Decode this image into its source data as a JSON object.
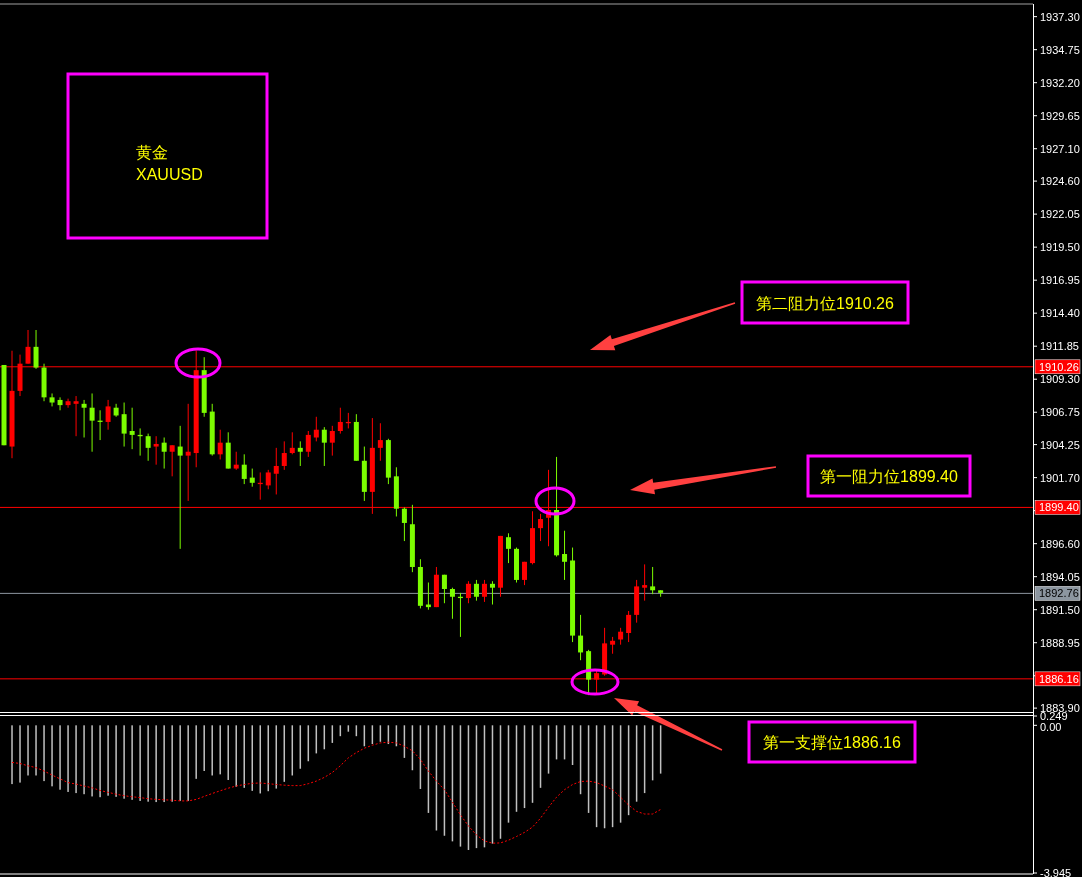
{
  "chart_data": [
    {
      "type": "candlestick",
      "title": "黄金",
      "subtitle": "XAUUSD",
      "categories": [
        null,
        null,
        null,
        null,
        null,
        null,
        null,
        null,
        null,
        null,
        null,
        null,
        null,
        null,
        null,
        null,
        null,
        null,
        null,
        null,
        null,
        null,
        null,
        null,
        null,
        null,
        null,
        null,
        null,
        null,
        null,
        null,
        null,
        null,
        null,
        null,
        null,
        null,
        null,
        null,
        null,
        null,
        null,
        null,
        null,
        null,
        null,
        null,
        null,
        null,
        null,
        null,
        null,
        null,
        null,
        null,
        null,
        null,
        null,
        null,
        null,
        null,
        null,
        null,
        null,
        null,
        null,
        null,
        null,
        null,
        null,
        null,
        null,
        null,
        null,
        null,
        null,
        null,
        null,
        null,
        null,
        null,
        null,
        null,
        null,
        null,
        null,
        null,
        null,
        null,
        null,
        null,
        null,
        null,
        null,
        null,
        null,
        null,
        null,
        null,
        null,
        null,
        null,
        null,
        null,
        null,
        null,
        null,
        null,
        null,
        null,
        null,
        null,
        null,
        null,
        null,
        null,
        null,
        null,
        null,
        null,
        null,
        null,
        null,
        null,
        null,
        null,
        null,
        null
      ],
      "ohlc": [
        [
          1910.4,
          1910.4,
          1904.2,
          1904.2
        ],
        [
          1904.1,
          1911.5,
          1903.2,
          1908.4
        ],
        [
          1908.4,
          1911.2,
          1908.0,
          1910.5
        ],
        [
          1910.5,
          1913.1,
          1910.5,
          1911.8
        ],
        [
          1911.8,
          1913.1,
          1910.1,
          1910.2
        ],
        [
          1910.2,
          1910.5,
          1907.6,
          1907.9
        ],
        [
          1907.9,
          1908.2,
          1907.2,
          1907.5
        ],
        [
          1907.7,
          1907.9,
          1906.9,
          1907.3
        ],
        [
          1907.3,
          1907.8,
          1907.1,
          1907.6
        ],
        [
          1907.4,
          1908.0,
          1904.9,
          1907.6
        ],
        [
          1907.4,
          1907.7,
          1904.8,
          1907.1
        ],
        [
          1907.1,
          1908.2,
          1903.7,
          1906.1
        ],
        [
          1906.1,
          1906.9,
          1904.6,
          1906.0
        ],
        [
          1906.0,
          1907.7,
          1905.4,
          1907.2
        ],
        [
          1907.1,
          1907.4,
          1906.4,
          1906.5
        ],
        [
          1906.6,
          1907.5,
          1904.1,
          1905.1
        ],
        [
          1905.3,
          1907.1,
          1903.9,
          1905.0
        ],
        [
          1905.0,
          1905.5,
          1903.4,
          1904.9
        ],
        [
          1904.9,
          1905.1,
          1903.0,
          1904.0
        ],
        [
          1904.1,
          1904.9,
          1902.7,
          1904.3
        ],
        [
          1904.4,
          1904.8,
          1902.4,
          1903.7
        ],
        [
          1903.7,
          1904.2,
          1901.8,
          1904.2
        ],
        [
          1904.1,
          1905.7,
          1896.2,
          1903.4
        ],
        [
          1903.4,
          1907.4,
          1899.9,
          1903.7
        ],
        [
          1903.6,
          1911.5,
          1902.5,
          1910.0
        ],
        [
          1910.0,
          1911.0,
          1906.4,
          1906.7
        ],
        [
          1906.8,
          1907.4,
          1903.4,
          1903.5
        ],
        [
          1903.5,
          1905.4,
          1903.1,
          1904.4
        ],
        [
          1904.4,
          1905.2,
          1902.4,
          1902.4
        ],
        [
          1902.4,
          1903.7,
          1902.3,
          1902.7
        ],
        [
          1902.7,
          1903.5,
          1901.2,
          1901.6
        ],
        [
          1901.7,
          1902.4,
          1901.0,
          1901.3
        ],
        [
          1901.2,
          1902.1,
          1900.0,
          1901.3
        ],
        [
          1901.1,
          1902.3,
          1900.8,
          1902.1
        ],
        [
          1902.0,
          1904.0,
          1900.4,
          1902.6
        ],
        [
          1902.6,
          1904.5,
          1902.3,
          1903.6
        ],
        [
          1903.6,
          1905.2,
          1903.5,
          1904.0
        ],
        [
          1904.0,
          1904.5,
          1902.6,
          1903.7
        ],
        [
          1903.7,
          1905.3,
          1903.3,
          1905.0
        ],
        [
          1904.8,
          1906.4,
          1904.5,
          1905.4
        ],
        [
          1905.4,
          1905.6,
          1902.6,
          1904.4
        ],
        [
          1904.4,
          1905.7,
          1903.4,
          1905.3
        ],
        [
          1905.3,
          1907.1,
          1905.1,
          1906.0
        ],
        [
          1905.9,
          1906.7,
          1905.5,
          1906.0
        ],
        [
          1906.0,
          1906.6,
          1903.0,
          1903.0
        ],
        [
          1903.0,
          1904.1,
          1899.9,
          1900.6
        ],
        [
          1900.6,
          1906.3,
          1898.9,
          1904.0
        ],
        [
          1904.0,
          1905.9,
          1903.0,
          1904.6
        ],
        [
          1904.6,
          1904.7,
          1901.2,
          1901.7
        ],
        [
          1901.8,
          1902.5,
          1898.7,
          1899.3
        ],
        [
          1899.3,
          1899.4,
          1896.8,
          1898.2
        ],
        [
          1898.1,
          1899.6,
          1894.4,
          1894.8
        ],
        [
          1894.8,
          1895.4,
          1891.6,
          1891.8
        ],
        [
          1891.9,
          1893.6,
          1891.5,
          1891.7
        ],
        [
          1891.7,
          1894.8,
          1891.7,
          1894.2
        ],
        [
          1894.2,
          1894.2,
          1892.0,
          1893.1
        ],
        [
          1893.1,
          1893.2,
          1890.8,
          1892.5
        ],
        [
          1892.5,
          1892.8,
          1889.4,
          1892.4
        ],
        [
          1892.4,
          1893.7,
          1892.0,
          1893.5
        ],
        [
          1893.5,
          1893.8,
          1892.2,
          1892.5
        ],
        [
          1892.5,
          1893.8,
          1892.1,
          1893.5
        ],
        [
          1893.5,
          1893.7,
          1891.9,
          1893.2
        ],
        [
          1893.2,
          1897.2,
          1892.5,
          1897.2
        ],
        [
          1897.1,
          1897.4,
          1895.1,
          1896.2
        ],
        [
          1896.2,
          1896.3,
          1893.6,
          1893.8
        ],
        [
          1893.8,
          1895.2,
          1893.4,
          1895.2
        ],
        [
          1895.1,
          1899.1,
          1895.0,
          1897.8
        ],
        [
          1897.8,
          1898.9,
          1896.8,
          1898.5
        ],
        [
          1898.6,
          1902.3,
          1896.4,
          1899.2
        ],
        [
          1899.2,
          1903.3,
          1895.6,
          1895.7
        ],
        [
          1895.8,
          1897.6,
          1893.8,
          1895.2
        ],
        [
          1895.3,
          1896.3,
          1889.0,
          1889.5
        ],
        [
          1889.5,
          1891.1,
          1887.6,
          1888.2
        ],
        [
          1888.3,
          1888.4,
          1884.9,
          1886.1
        ],
        [
          1886.1,
          1886.8,
          1885.0,
          1886.6
        ],
        [
          1886.5,
          1890.1,
          1886.4,
          1888.9
        ],
        [
          1888.8,
          1889.4,
          1888.1,
          1889.1
        ],
        [
          1889.2,
          1890.1,
          1888.8,
          1889.8
        ],
        [
          1889.7,
          1891.4,
          1889.0,
          1891.1
        ],
        [
          1891.1,
          1893.8,
          1890.5,
          1893.3
        ],
        [
          1893.2,
          1895.0,
          1892.2,
          1893.4
        ],
        [
          1893.3,
          1894.8,
          1892.7,
          1893.0
        ],
        [
          1893.0,
          1893.0,
          1892.5,
          1892.8
        ],
        null,
        null,
        null,
        null,
        null,
        null,
        null,
        null,
        null,
        null,
        null,
        null,
        null,
        null,
        null,
        null,
        null,
        null,
        null,
        null,
        null,
        null,
        null,
        null,
        null,
        null,
        null,
        null,
        null,
        null,
        null,
        null,
        null,
        null,
        null,
        null,
        null,
        null,
        null,
        null,
        null,
        null,
        null,
        null,
        null,
        null
      ],
      "ylim": [
        1883.6,
        1938.2
      ],
      "yticks": [
        {
          "value": 1937.3,
          "label": "1937.30"
        },
        {
          "value": 1934.75,
          "label": "1934.75"
        },
        {
          "value": 1932.2,
          "label": "1932.20"
        },
        {
          "value": 1929.65,
          "label": "1929.65"
        },
        {
          "value": 1927.1,
          "label": "1927.10"
        },
        {
          "value": 1924.6,
          "label": "1924.60"
        },
        {
          "value": 1922.05,
          "label": "1922.05"
        },
        {
          "value": 1919.5,
          "label": "1919.50"
        },
        {
          "value": 1916.95,
          "label": "1916.95"
        },
        {
          "value": 1914.4,
          "label": "1914.40"
        },
        {
          "value": 1911.85,
          "label": "1911.85"
        },
        {
          "value": 1909.3,
          "label": "1909.30"
        },
        {
          "value": 1906.75,
          "label": "1906.75"
        },
        {
          "value": 1904.25,
          "label": "1904.25"
        },
        {
          "value": 1901.7,
          "label": "1901.70"
        },
        {
          "value": 1899.15,
          "label": null
        },
        {
          "value": 1896.6,
          "label": "1896.60"
        },
        {
          "value": 1894.05,
          "label": "1894.05"
        },
        {
          "value": 1891.5,
          "label": "1891.50"
        },
        {
          "value": 1888.95,
          "label": "1888.95"
        },
        {
          "value": 1886.4,
          "label": null
        },
        {
          "value": 1883.9,
          "label": "1883.90"
        }
      ],
      "ref_lines": [
        {
          "axis": "y",
          "value": 1910.26,
          "label": "1910.26",
          "color": "#ff0000"
        },
        {
          "axis": "y",
          "value": 1899.4,
          "label": "1899.40",
          "color": "#ff0000"
        },
        {
          "axis": "y",
          "value": 1892.76,
          "label": "1892.76",
          "color": "#8c96a0"
        },
        {
          "axis": "y",
          "value": 1886.16,
          "label": "1886.16",
          "color": "#ff0000"
        }
      ],
      "annotations": [
        "第二阻力位1910.26",
        "第一阻力位1899.40",
        "第一支撑位1886.16"
      ]
    },
    {
      "type": "bar",
      "categories": [
        null,
        null,
        null,
        null,
        null,
        null,
        null,
        null,
        null,
        null,
        null,
        null,
        null,
        null,
        null,
        null,
        null,
        null,
        null,
        null,
        null,
        null,
        null,
        null,
        null,
        null,
        null,
        null,
        null,
        null,
        null,
        null,
        null,
        null,
        null,
        null,
        null,
        null,
        null,
        null,
        null,
        null,
        null,
        null,
        null,
        null,
        null,
        null,
        null,
        null,
        null,
        null,
        null,
        null,
        null,
        null,
        null,
        null,
        null,
        null,
        null,
        null,
        null,
        null,
        null,
        null,
        null,
        null,
        null,
        null,
        null,
        null,
        null,
        null,
        null,
        null,
        null,
        null,
        null,
        null,
        null,
        null,
        null,
        null,
        null,
        null,
        null,
        null,
        null,
        null,
        null,
        null,
        null,
        null,
        null,
        null,
        null,
        null,
        null,
        null,
        null,
        null,
        null,
        null,
        null,
        null,
        null,
        null,
        null,
        null,
        null,
        null,
        null,
        null,
        null,
        null,
        null,
        null,
        null,
        null,
        null,
        null,
        null,
        null,
        null,
        null,
        null,
        null,
        null
      ],
      "ylim": [
        -3.945,
        0.249
      ],
      "yticks": [
        {
          "value": 0.249,
          "label": "0.249"
        },
        {
          "value": 0,
          "label": "0.00"
        },
        {
          "value": -3.945,
          "label": "-3.945"
        }
      ],
      "series": [
        {
          "type": "bar",
          "color": "#c0c0c0",
          "values": [
            null,
            -1.57,
            -1.53,
            -1.34,
            -1.34,
            -1.49,
            -1.63,
            -1.72,
            -1.78,
            -1.81,
            -1.84,
            -1.9,
            -1.92,
            -1.88,
            -1.91,
            -1.96,
            -1.99,
            -2.02,
            -2.04,
            -2.05,
            -2.05,
            -2.04,
            -2.02,
            -2.02,
            -1.43,
            -1.22,
            -1.34,
            -1.31,
            -1.46,
            -1.64,
            -1.67,
            -1.75,
            -1.82,
            -1.76,
            -1.69,
            -1.51,
            -1.34,
            -1.16,
            -0.96,
            -0.75,
            -0.64,
            -0.47,
            -0.29,
            -0.17,
            -0.29,
            -0.56,
            -0.5,
            -0.44,
            -0.5,
            -0.56,
            -0.87,
            -1.2,
            -1.7,
            -2.34,
            -2.81,
            -2.95,
            -3.1,
            -3.24,
            -3.33,
            -3.28,
            -3.26,
            -3.16,
            -3.03,
            -2.6,
            -2.31,
            -2.21,
            -2.07,
            -1.67,
            -1.29,
            -0.91,
            -0.91,
            -1.06,
            -1.84,
            -2.34,
            -2.72,
            -2.75,
            -2.72,
            -2.6,
            -2.4,
            -2.04,
            -1.81,
            -1.47,
            -1.29,
            null,
            null,
            null,
            null,
            null,
            null,
            null,
            null,
            null,
            null,
            null,
            null,
            null,
            null,
            null,
            null,
            null,
            null,
            null,
            null,
            null,
            null,
            null,
            null,
            null,
            null,
            null,
            null,
            null,
            null,
            null,
            null,
            null,
            null,
            null,
            null,
            null,
            null,
            null,
            null,
            null,
            null,
            null,
            null,
            null,
            null
          ]
        },
        {
          "type": "line",
          "color": "#ff0000",
          "line_style": "dotted",
          "values": [
            null,
            -0.99,
            -1.02,
            -1.08,
            -1.13,
            -1.22,
            -1.33,
            -1.43,
            -1.53,
            -1.57,
            -1.62,
            -1.67,
            -1.74,
            -1.79,
            -1.84,
            -1.88,
            -1.91,
            -1.93,
            -1.96,
            -1.98,
            -1.99,
            -2.0,
            -2.02,
            -2.02,
            -1.98,
            -1.9,
            -1.82,
            -1.75,
            -1.68,
            -1.62,
            -1.58,
            -1.55,
            -1.54,
            -1.56,
            -1.58,
            -1.6,
            -1.61,
            -1.61,
            -1.56,
            -1.49,
            -1.39,
            -1.26,
            -1.08,
            -0.87,
            -0.73,
            -0.61,
            -0.53,
            -0.47,
            -0.45,
            -0.47,
            -0.56,
            -0.68,
            -0.91,
            -1.22,
            -1.49,
            -1.72,
            -2.05,
            -2.39,
            -2.69,
            -2.93,
            -3.09,
            -3.15,
            -3.14,
            -3.07,
            -2.97,
            -2.86,
            -2.72,
            -2.48,
            -2.19,
            -1.92,
            -1.72,
            -1.58,
            -1.5,
            -1.49,
            -1.53,
            -1.62,
            -1.72,
            -1.92,
            -2.13,
            -2.3,
            -2.37,
            -2.37,
            -2.25,
            null,
            null,
            null,
            null,
            null,
            null,
            null,
            null,
            null,
            null,
            null,
            null,
            null,
            null,
            null,
            null,
            null,
            null,
            null,
            null,
            null,
            null,
            null,
            null,
            null,
            null,
            null,
            null,
            null,
            null,
            null,
            null,
            null,
            null,
            null,
            null,
            null,
            null,
            null,
            null,
            null,
            null,
            null,
            null,
            null,
            null
          ]
        }
      ]
    }
  ]
}
